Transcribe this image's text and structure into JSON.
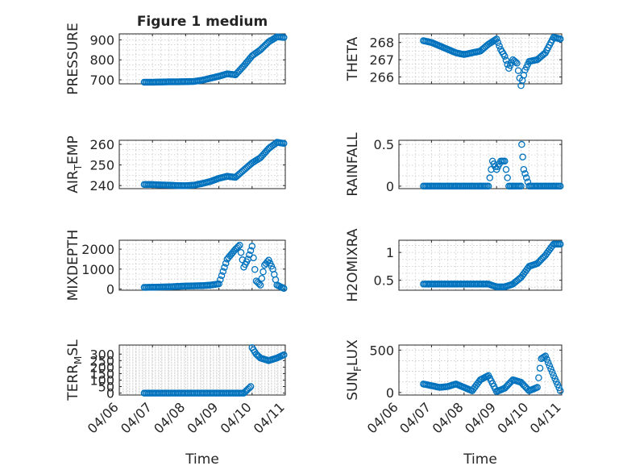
{
  "colors": {
    "marker": "#0072bd",
    "axis": "#262626",
    "grid": "#c8c8c8"
  },
  "chart_data": [
    {
      "type": "scatter",
      "title": "Figure 1 medium",
      "ylabel": "PRESSURE",
      "xlim": [
        "04/06",
        "04/11"
      ],
      "ylim": [
        680,
        930
      ],
      "yticks": [
        700,
        800,
        900
      ],
      "grid": true,
      "series": [
        {
          "x": [
            "04/06 18:00",
            "04/07 00:00",
            "04/07 06:00",
            "04/07 12:00",
            "04/07 18:00",
            "04/08 00:00",
            "04/08 06:00",
            "04/08 12:00",
            "04/08 18:00",
            "04/09 00:00",
            "04/09 06:00",
            "04/09 12:00",
            "04/09 18:00",
            "04/10 00:00",
            "04/10 06:00",
            "04/10 12:00",
            "04/10 18:00",
            "04/10 23:00"
          ],
          "y": [
            688,
            688,
            689,
            690,
            690,
            691,
            692,
            698,
            708,
            718,
            730,
            725,
            770,
            820,
            850,
            890,
            915,
            912
          ]
        }
      ]
    },
    {
      "type": "scatter",
      "ylabel": "THETA",
      "xlim": [
        "04/06",
        "04/11"
      ],
      "ylim": [
        265.6,
        268.5
      ],
      "yticks": [
        266,
        267,
        268
      ],
      "grid": true,
      "series": [
        {
          "x": [
            "04/06 18:00",
            "04/07 00:00",
            "04/07 06:00",
            "04/07 12:00",
            "04/07 18:00",
            "04/08 00:00",
            "04/08 06:00",
            "04/08 12:00",
            "04/08 18:00",
            "04/09 00:00",
            "04/09 03:00",
            "04/09 06:00",
            "04/09 09:00",
            "04/09 12:00",
            "04/09 15:00",
            "04/09 18:00",
            "04/09 21:00",
            "04/10 00:00",
            "04/10 06:00",
            "04/10 12:00",
            "04/10 18:00",
            "04/10 23:00"
          ],
          "y": [
            268.1,
            268.0,
            267.8,
            267.6,
            267.4,
            267.3,
            267.4,
            267.5,
            267.9,
            268.2,
            267.6,
            267.2,
            266.5,
            267.0,
            266.8,
            265.5,
            266.4,
            266.9,
            267.0,
            267.4,
            268.3,
            268.2
          ]
        }
      ]
    },
    {
      "type": "scatter",
      "ylabel": "AIR_TEMP",
      "xlim": [
        "04/06",
        "04/11"
      ],
      "ylim": [
        238.5,
        262
      ],
      "yticks": [
        240,
        250,
        260
      ],
      "grid": true,
      "series": [
        {
          "x": [
            "04/06 18:00",
            "04/07 00:00",
            "04/07 06:00",
            "04/07 12:00",
            "04/07 18:00",
            "04/08 00:00",
            "04/08 06:00",
            "04/08 12:00",
            "04/08 18:00",
            "04/09 00:00",
            "04/09 06:00",
            "04/09 12:00",
            "04/09 18:00",
            "04/10 00:00",
            "04/10 06:00",
            "04/10 12:00",
            "04/10 18:00",
            "04/10 23:00"
          ],
          "y": [
            240.5,
            240.5,
            240.3,
            240.2,
            240.0,
            239.9,
            240.2,
            241.0,
            242.0,
            243.5,
            244.5,
            244.0,
            247.5,
            251.0,
            253.5,
            258.0,
            261.0,
            260.5
          ]
        }
      ]
    },
    {
      "type": "scatter",
      "ylabel": "RAINFALL",
      "xlim": [
        "04/06",
        "04/11"
      ],
      "ylim": [
        -0.03,
        0.55
      ],
      "yticks": [
        0,
        0.5
      ],
      "grid": true,
      "series": [
        {
          "x": [
            "04/06 18:00",
            "04/07 06:00",
            "04/07 18:00",
            "04/08 06:00",
            "04/08 18:00",
            "04/08 21:00",
            "04/09 00:00",
            "04/09 03:00",
            "04/09 06:00",
            "04/09 09:00",
            "04/09 12:00",
            "04/09 18:00",
            "04/10 00:00",
            "04/10 06:00",
            "04/10 12:00",
            "04/10 18:00",
            "04/10 23:00",
            "04/09 18:30",
            "04/09 20:00"
          ],
          "y": [
            0,
            0,
            0,
            0,
            0,
            0.3,
            0.2,
            0.3,
            0.3,
            0,
            0,
            0,
            0,
            0,
            0,
            0,
            0,
            0.5,
            0.2
          ]
        }
      ]
    },
    {
      "type": "scatter",
      "ylabel": "MIXDEPTH",
      "xlim": [
        "04/06",
        "04/11"
      ],
      "ylim": [
        -60,
        2450
      ],
      "yticks": [
        0,
        1000,
        2000
      ],
      "grid": true,
      "series": [
        {
          "x": [
            "04/06 18:00",
            "04/07 00:00",
            "04/07 06:00",
            "04/07 12:00",
            "04/07 18:00",
            "04/08 00:00",
            "04/08 06:00",
            "04/08 12:00",
            "04/08 18:00",
            "04/09 00:00",
            "04/09 06:00",
            "04/09 12:00",
            "04/09 15:00",
            "04/09 18:00",
            "04/09 21:00",
            "04/10 00:00",
            "04/10 03:00",
            "04/10 06:00",
            "04/10 09:00",
            "04/10 12:00",
            "04/10 15:00",
            "04/10 18:00",
            "04/10 23:00"
          ],
          "y": [
            80,
            90,
            100,
            110,
            130,
            150,
            160,
            170,
            200,
            260,
            1500,
            2000,
            2200,
            1100,
            1500,
            2150,
            400,
            200,
            1200,
            1450,
            1000,
            200,
            30
          ]
        }
      ]
    },
    {
      "type": "scatter",
      "ylabel": "H2OMIXRA",
      "xlim": [
        "04/06",
        "04/11"
      ],
      "ylim": [
        0.32,
        1.22
      ],
      "yticks": [
        0.5,
        1
      ],
      "grid": true,
      "series": [
        {
          "x": [
            "04/06 18:00",
            "04/07 00:00",
            "04/07 06:00",
            "04/07 12:00",
            "04/07 18:00",
            "04/08 00:00",
            "04/08 06:00",
            "04/08 12:00",
            "04/08 18:00",
            "04/09 00:00",
            "04/09 06:00",
            "04/09 12:00",
            "04/09 18:00",
            "04/10 00:00",
            "04/10 06:00",
            "04/10 12:00",
            "04/10 18:00",
            "04/10 23:00"
          ],
          "y": [
            0.43,
            0.43,
            0.43,
            0.43,
            0.43,
            0.43,
            0.43,
            0.43,
            0.43,
            0.38,
            0.38,
            0.43,
            0.55,
            0.75,
            0.8,
            0.95,
            1.15,
            1.15
          ]
        }
      ]
    },
    {
      "type": "scatter",
      "ylabel": "TERR_MSL",
      "xlim": [
        "04/06",
        "04/11"
      ],
      "ylim": [
        -15,
        370
      ],
      "yticks": [
        0,
        50,
        100,
        150,
        200,
        250,
        300
      ],
      "grid": true,
      "series": [
        {
          "x": [
            "04/06 18:00",
            "04/07 00:00",
            "04/07 06:00",
            "04/07 12:00",
            "04/07 18:00",
            "04/08 00:00",
            "04/08 06:00",
            "04/08 12:00",
            "04/08 18:00",
            "04/09 00:00",
            "04/09 06:00",
            "04/09 12:00",
            "04/09 18:00",
            "04/09 23:00",
            "04/10 00:00",
            "04/10 03:00",
            "04/10 06:00",
            "04/10 12:00",
            "04/10 18:00",
            "04/10 23:00"
          ],
          "y": [
            0,
            0,
            0,
            0,
            0,
            0,
            0,
            0,
            0,
            0,
            0,
            0,
            0,
            50,
            350,
            300,
            270,
            250,
            270,
            295
          ]
        }
      ]
    },
    {
      "type": "scatter",
      "ylabel": "SUN_FLUX",
      "xlabel": "Time",
      "xlim": [
        "04/06",
        "04/11"
      ],
      "ylim": [
        -30,
        560
      ],
      "yticks": [
        0,
        500
      ],
      "grid": true,
      "series": [
        {
          "x": [
            "04/06 18:00",
            "04/07 00:00",
            "04/07 06:00",
            "04/07 12:00",
            "04/07 18:00",
            "04/08 00:00",
            "04/08 06:00",
            "04/08 12:00",
            "04/08 18:00",
            "04/09 00:00",
            "04/09 06:00",
            "04/09 12:00",
            "04/09 18:00",
            "04/10 00:00",
            "04/10 06:00",
            "04/10 09:00",
            "04/10 12:00",
            "04/10 18:00",
            "04/10 23:00"
          ],
          "y": [
            100,
            80,
            60,
            70,
            100,
            60,
            20,
            150,
            200,
            10,
            50,
            150,
            120,
            20,
            60,
            400,
            430,
            200,
            20
          ]
        }
      ]
    }
  ],
  "x_tick_labels": [
    "04/06",
    "04/07",
    "04/08",
    "04/09",
    "04/10",
    "04/11"
  ],
  "xlabels": [
    "Time",
    "Time"
  ]
}
